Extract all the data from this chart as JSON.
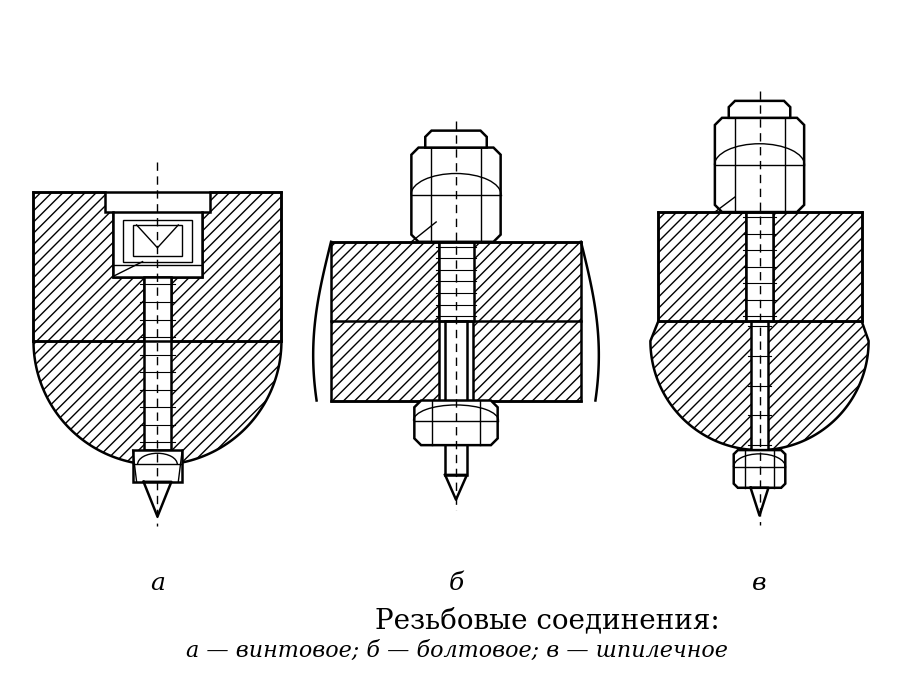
{
  "title": "Резьбовые соединения:",
  "subtitle": "а — винтовое; б — болтовое; в — шпилечное",
  "labels": [
    "а",
    "б",
    "в"
  ],
  "bg_color": "#ffffff",
  "line_color": "#000000",
  "fig_width": 9.13,
  "fig_height": 6.81,
  "dpi": 100
}
